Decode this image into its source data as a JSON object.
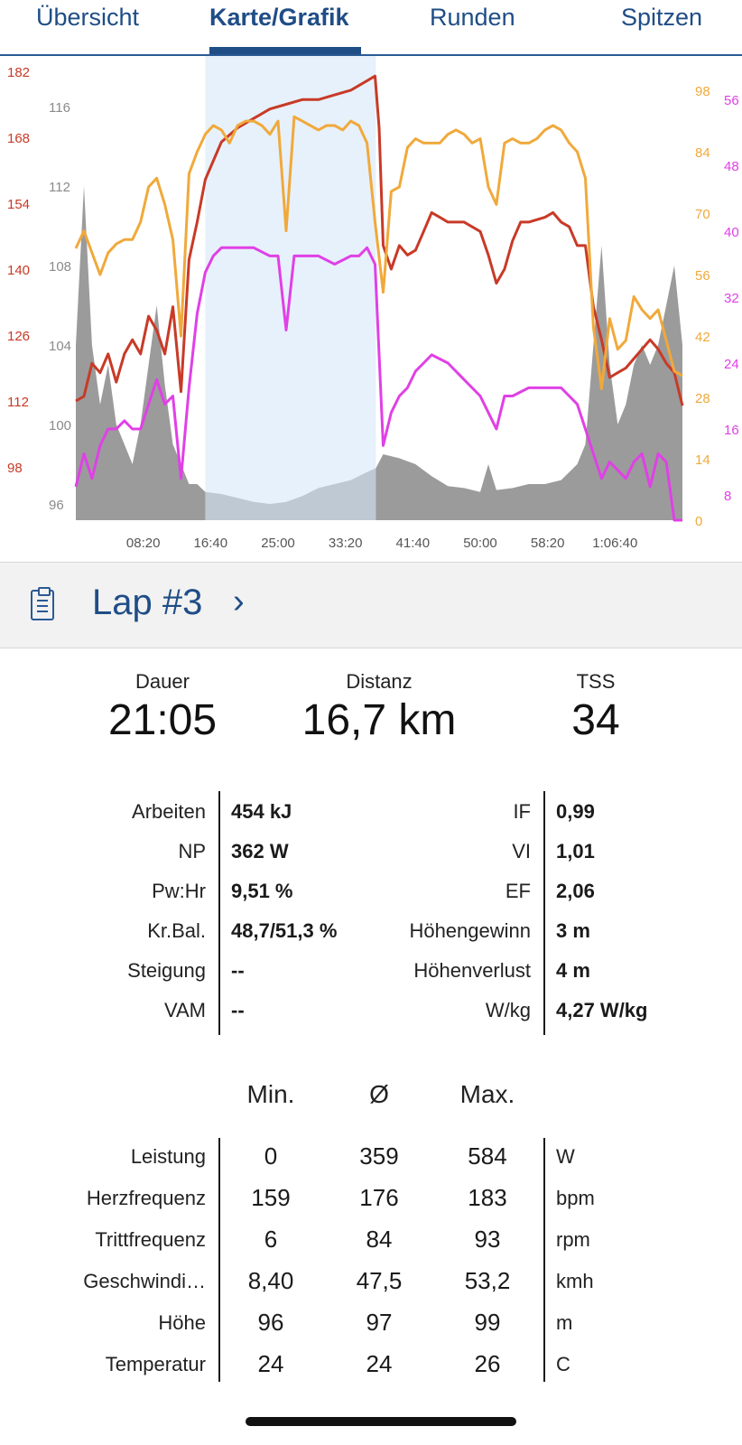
{
  "tabs": [
    {
      "label": "Übersicht"
    },
    {
      "label": "Karte/Grafik",
      "active": true
    },
    {
      "label": "Runden"
    },
    {
      "label": "Spitzen"
    }
  ],
  "colors": {
    "accent": "#1f4d86",
    "heart_rate": "#c83a27",
    "cadence": "#f0a93b",
    "power": "#e040e6",
    "elevation": "#8a8a8a",
    "selection": "#d7e8f9"
  },
  "chart_data": {
    "type": "line",
    "x_ticks": [
      "08:20",
      "16:40",
      "25:00",
      "33:20",
      "41:40",
      "50:00",
      "58:20",
      "1:06:40"
    ],
    "x_range_min": [
      0,
      75
    ],
    "selection_range_min": [
      16.0,
      37.1
    ],
    "axes": {
      "heart_rate": {
        "ticks": [
          "182",
          "168",
          "154",
          "140",
          "126",
          "112",
          "98"
        ],
        "color": "#c83a27"
      },
      "elevation": {
        "ticks": [
          "116",
          "112",
          "108",
          "104",
          "100",
          "96"
        ],
        "color": "#8a8a8a"
      },
      "cadence": {
        "ticks": [
          "98",
          "84",
          "70",
          "56",
          "42",
          "28",
          "14",
          "0"
        ],
        "color": "#f0a93b"
      },
      "power": {
        "ticks": [
          "56",
          "48",
          "40",
          "32",
          "24",
          "16",
          "8"
        ],
        "color": "#e040e6"
      }
    },
    "series": [
      {
        "name": "Höhe",
        "unit": "m",
        "points": [
          [
            0,
            104
          ],
          [
            1,
            112
          ],
          [
            2,
            104
          ],
          [
            3,
            101
          ],
          [
            4,
            103
          ],
          [
            5,
            100
          ],
          [
            6,
            99
          ],
          [
            7,
            98
          ],
          [
            8,
            100
          ],
          [
            9,
            103
          ],
          [
            10,
            106
          ],
          [
            11,
            102
          ],
          [
            12,
            99
          ],
          [
            13,
            98
          ],
          [
            14,
            97
          ],
          [
            15,
            97
          ],
          [
            16,
            96.6
          ],
          [
            18,
            96.5
          ],
          [
            20,
            96.3
          ],
          [
            22,
            96.1
          ],
          [
            24,
            96
          ],
          [
            26,
            96.1
          ],
          [
            28,
            96.4
          ],
          [
            30,
            96.8
          ],
          [
            32,
            97
          ],
          [
            34,
            97.2
          ],
          [
            36,
            97.6
          ],
          [
            37.1,
            97.8
          ],
          [
            38,
            98.5
          ],
          [
            40,
            98.3
          ],
          [
            42,
            98
          ],
          [
            44,
            97.4
          ],
          [
            46,
            96.9
          ],
          [
            48,
            96.8
          ],
          [
            50,
            96.6
          ],
          [
            51,
            98
          ],
          [
            52,
            96.7
          ],
          [
            54,
            96.8
          ],
          [
            56,
            97
          ],
          [
            58,
            97
          ],
          [
            60,
            97.2
          ],
          [
            62,
            98
          ],
          [
            63,
            99
          ],
          [
            64,
            104
          ],
          [
            65,
            109
          ],
          [
            66,
            103
          ],
          [
            67,
            100
          ],
          [
            68,
            101
          ],
          [
            69,
            103
          ],
          [
            70,
            104
          ],
          [
            71,
            103
          ],
          [
            72,
            104
          ],
          [
            73,
            106
          ],
          [
            74,
            108
          ],
          [
            75,
            104
          ]
        ]
      },
      {
        "name": "Herzfrequenz",
        "unit": "bpm",
        "points": [
          [
            0,
            112
          ],
          [
            1,
            113
          ],
          [
            2,
            120
          ],
          [
            3,
            118
          ],
          [
            4,
            122
          ],
          [
            5,
            116
          ],
          [
            6,
            122
          ],
          [
            7,
            125
          ],
          [
            8,
            122
          ],
          [
            9,
            130
          ],
          [
            10,
            127
          ],
          [
            11,
            122
          ],
          [
            12,
            132
          ],
          [
            13,
            114
          ],
          [
            14,
            142
          ],
          [
            15,
            150
          ],
          [
            16,
            159
          ],
          [
            17,
            163
          ],
          [
            18,
            167
          ],
          [
            20,
            170
          ],
          [
            22,
            172
          ],
          [
            24,
            174
          ],
          [
            26,
            175
          ],
          [
            28,
            176
          ],
          [
            30,
            176
          ],
          [
            32,
            177
          ],
          [
            34,
            178
          ],
          [
            36,
            180
          ],
          [
            37,
            181
          ],
          [
            37.5,
            170
          ],
          [
            38,
            145
          ],
          [
            39,
            140
          ],
          [
            40,
            145
          ],
          [
            41,
            143
          ],
          [
            42,
            144
          ],
          [
            43,
            148
          ],
          [
            44,
            152
          ],
          [
            45,
            151
          ],
          [
            46,
            150
          ],
          [
            48,
            150
          ],
          [
            50,
            148
          ],
          [
            51,
            143
          ],
          [
            52,
            137
          ],
          [
            53,
            140
          ],
          [
            54,
            146
          ],
          [
            55,
            150
          ],
          [
            56,
            150
          ],
          [
            58,
            151
          ],
          [
            59,
            152
          ],
          [
            60,
            150
          ],
          [
            61,
            149
          ],
          [
            62,
            145
          ],
          [
            63,
            145
          ],
          [
            64,
            132
          ],
          [
            65,
            125
          ],
          [
            66,
            117
          ],
          [
            67,
            118
          ],
          [
            68,
            119
          ],
          [
            69,
            121
          ],
          [
            70,
            123
          ],
          [
            71,
            125
          ],
          [
            72,
            123
          ],
          [
            73,
            120
          ],
          [
            74,
            118
          ],
          [
            75,
            111
          ]
        ]
      },
      {
        "name": "Trittfrequenz",
        "unit": "rpm",
        "points": [
          [
            0,
            56
          ],
          [
            1,
            60
          ],
          [
            2,
            55
          ],
          [
            3,
            50
          ],
          [
            4,
            55
          ],
          [
            5,
            57
          ],
          [
            6,
            58
          ],
          [
            7,
            58
          ],
          [
            8,
            62
          ],
          [
            9,
            70
          ],
          [
            10,
            72
          ],
          [
            11,
            66
          ],
          [
            12,
            58
          ],
          [
            13,
            36
          ],
          [
            14,
            73
          ],
          [
            15,
            78
          ],
          [
            16,
            82
          ],
          [
            17,
            84
          ],
          [
            18,
            83
          ],
          [
            19,
            80
          ],
          [
            20,
            84
          ],
          [
            21,
            85
          ],
          [
            22,
            85
          ],
          [
            23,
            84
          ],
          [
            24,
            82
          ],
          [
            25,
            85
          ],
          [
            26,
            60
          ],
          [
            27,
            86
          ],
          [
            28,
            85
          ],
          [
            29,
            84
          ],
          [
            30,
            83
          ],
          [
            31,
            84
          ],
          [
            32,
            84
          ],
          [
            33,
            83
          ],
          [
            34,
            85
          ],
          [
            35,
            84
          ],
          [
            36,
            80
          ],
          [
            37,
            62
          ],
          [
            38,
            46
          ],
          [
            39,
            69
          ],
          [
            40,
            70
          ],
          [
            41,
            79
          ],
          [
            42,
            81
          ],
          [
            43,
            80
          ],
          [
            44,
            80
          ],
          [
            45,
            80
          ],
          [
            46,
            82
          ],
          [
            47,
            83
          ],
          [
            48,
            82
          ],
          [
            49,
            80
          ],
          [
            50,
            81
          ],
          [
            51,
            70
          ],
          [
            52,
            66
          ],
          [
            53,
            80
          ],
          [
            54,
            81
          ],
          [
            55,
            80
          ],
          [
            56,
            80
          ],
          [
            57,
            81
          ],
          [
            58,
            83
          ],
          [
            59,
            84
          ],
          [
            60,
            83
          ],
          [
            61,
            80
          ],
          [
            62,
            78
          ],
          [
            63,
            72
          ],
          [
            64,
            38
          ],
          [
            65,
            24
          ],
          [
            66,
            40
          ],
          [
            67,
            33
          ],
          [
            68,
            35
          ],
          [
            69,
            45
          ],
          [
            70,
            42
          ],
          [
            71,
            40
          ],
          [
            72,
            42
          ],
          [
            73,
            35
          ],
          [
            74,
            28
          ],
          [
            75,
            27
          ]
        ]
      },
      {
        "name": "Leistung",
        "unit": "W",
        "points": [
          [
            0,
            9
          ],
          [
            1,
            13
          ],
          [
            2,
            10
          ],
          [
            3,
            14
          ],
          [
            4,
            16
          ],
          [
            5,
            16
          ],
          [
            6,
            17
          ],
          [
            7,
            16
          ],
          [
            8,
            16
          ],
          [
            9,
            19
          ],
          [
            10,
            22
          ],
          [
            11,
            19
          ],
          [
            12,
            20
          ],
          [
            13,
            10
          ],
          [
            14,
            21
          ],
          [
            15,
            30
          ],
          [
            16,
            35
          ],
          [
            17,
            37
          ],
          [
            18,
            38
          ],
          [
            19,
            38
          ],
          [
            20,
            38
          ],
          [
            22,
            38
          ],
          [
            24,
            37
          ],
          [
            25,
            37
          ],
          [
            26,
            28
          ],
          [
            27,
            37
          ],
          [
            28,
            37
          ],
          [
            30,
            37
          ],
          [
            32,
            36
          ],
          [
            34,
            37
          ],
          [
            35,
            37
          ],
          [
            36,
            38
          ],
          [
            37,
            36
          ],
          [
            37.5,
            25
          ],
          [
            38,
            14
          ],
          [
            39,
            18
          ],
          [
            40,
            20
          ],
          [
            41,
            21
          ],
          [
            42,
            23
          ],
          [
            43,
            24
          ],
          [
            44,
            25
          ],
          [
            46,
            24
          ],
          [
            48,
            22
          ],
          [
            50,
            20
          ],
          [
            51,
            18
          ],
          [
            52,
            16
          ],
          [
            53,
            20
          ],
          [
            54,
            20
          ],
          [
            56,
            21
          ],
          [
            58,
            21
          ],
          [
            59,
            21
          ],
          [
            60,
            21
          ],
          [
            61,
            20
          ],
          [
            62,
            19
          ],
          [
            63,
            16
          ],
          [
            64,
            13
          ],
          [
            65,
            10
          ],
          [
            66,
            12
          ],
          [
            67,
            11
          ],
          [
            68,
            10
          ],
          [
            69,
            12
          ],
          [
            70,
            13
          ],
          [
            71,
            9
          ],
          [
            72,
            13
          ],
          [
            73,
            12
          ],
          [
            74,
            4
          ],
          [
            75,
            2
          ]
        ]
      }
    ]
  },
  "lap": {
    "title": "Lap #3",
    "icon": "clipboard-icon",
    "chevron": "chevron-right-icon"
  },
  "summary": [
    {
      "label": "Dauer",
      "value": "21:05"
    },
    {
      "label": "Distanz",
      "value": "16,7 km"
    },
    {
      "label": "TSS",
      "value": "34"
    }
  ],
  "metrics": [
    {
      "l1": "Arbeiten",
      "v1": "454 kJ",
      "l2": "IF",
      "v2": "0,99"
    },
    {
      "l1": "NP",
      "v1": "362 W",
      "l2": "VI",
      "v2": "1,01"
    },
    {
      "l1": "Pw:Hr",
      "v1": "9,51 %",
      "l2": "EF",
      "v2": "2,06"
    },
    {
      "l1": "Kr.Bal.",
      "v1": "48,7/51,3 %",
      "l2": "Höhengewinn",
      "v2": "3 m"
    },
    {
      "l1": "Steigung",
      "v1": "--",
      "l2": "Höhenverlust",
      "v2": "4 m"
    },
    {
      "l1": "VAM",
      "v1": "--",
      "l2": "W/kg",
      "v2": "4,27 W/kg"
    }
  ],
  "stats": {
    "headers": [
      "Min.",
      "Ø",
      "Max."
    ],
    "rows": [
      {
        "label": "Leistung",
        "min": "0",
        "avg": "359",
        "max": "584",
        "unit": "W"
      },
      {
        "label": "Herzfrequenz",
        "min": "159",
        "avg": "176",
        "max": "183",
        "unit": "bpm"
      },
      {
        "label": "Trittfrequenz",
        "min": "6",
        "avg": "84",
        "max": "93",
        "unit": "rpm"
      },
      {
        "label": "Geschwindi…",
        "min": "8,40",
        "avg": "47,5",
        "max": "53,2",
        "unit": "kmh"
      },
      {
        "label": "Höhe",
        "min": "96",
        "avg": "97",
        "max": "99",
        "unit": "m"
      },
      {
        "label": "Temperatur",
        "min": "24",
        "avg": "24",
        "max": "26",
        "unit": "C"
      }
    ]
  }
}
